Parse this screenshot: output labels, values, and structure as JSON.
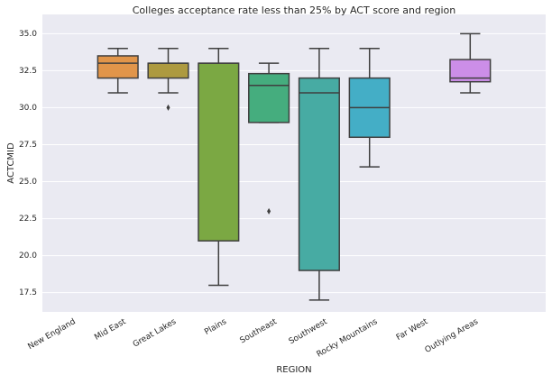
{
  "chart_data": {
    "type": "box",
    "title": "Colleges acceptance rate less than 25% by ACT score and region",
    "x_label": "REGION",
    "y_label": "ACTCMID",
    "categories": [
      "New England",
      "Mid East",
      "Great Lakes",
      "Plains",
      "Southeast",
      "Southwest",
      "Rocky Mountains",
      "Far West",
      "Outlying Areas",
      null
    ],
    "whisker_low": [
      null,
      31,
      31,
      18,
      29,
      17,
      26,
      null,
      31,
      null
    ],
    "q1": [
      null,
      32,
      32,
      21,
      29,
      19,
      28,
      null,
      31.75,
      null
    ],
    "median": [
      null,
      33,
      33,
      33,
      31.5,
      31,
      30,
      null,
      32,
      null
    ],
    "q3": [
      null,
      33.5,
      33,
      33,
      32.3,
      32,
      32,
      null,
      33.25,
      null
    ],
    "whisker_high": [
      null,
      34,
      34,
      34,
      33,
      34,
      34,
      null,
      35,
      null
    ],
    "outliers": [
      [],
      [],
      [
        30
      ],
      [],
      [
        23
      ],
      [],
      [],
      [],
      [],
      []
    ],
    "colors": [
      null,
      "#e1954a",
      "#ad9a40",
      "#7ba843",
      "#45ad7e",
      "#47aba3",
      "#44aec6",
      null,
      "#cc8ee8",
      null
    ],
    "ylim": [
      16.2,
      36.3
    ],
    "yticks": [
      17.5,
      {
        "value": 20,
        "label": "20.0"
      },
      22.5,
      {
        "value": 25,
        "label": "25.0"
      },
      27.5,
      {
        "value": 30,
        "label": "30.0"
      },
      32.5,
      {
        "value": 35,
        "label": "35.0"
      }
    ],
    "grid": true
  }
}
